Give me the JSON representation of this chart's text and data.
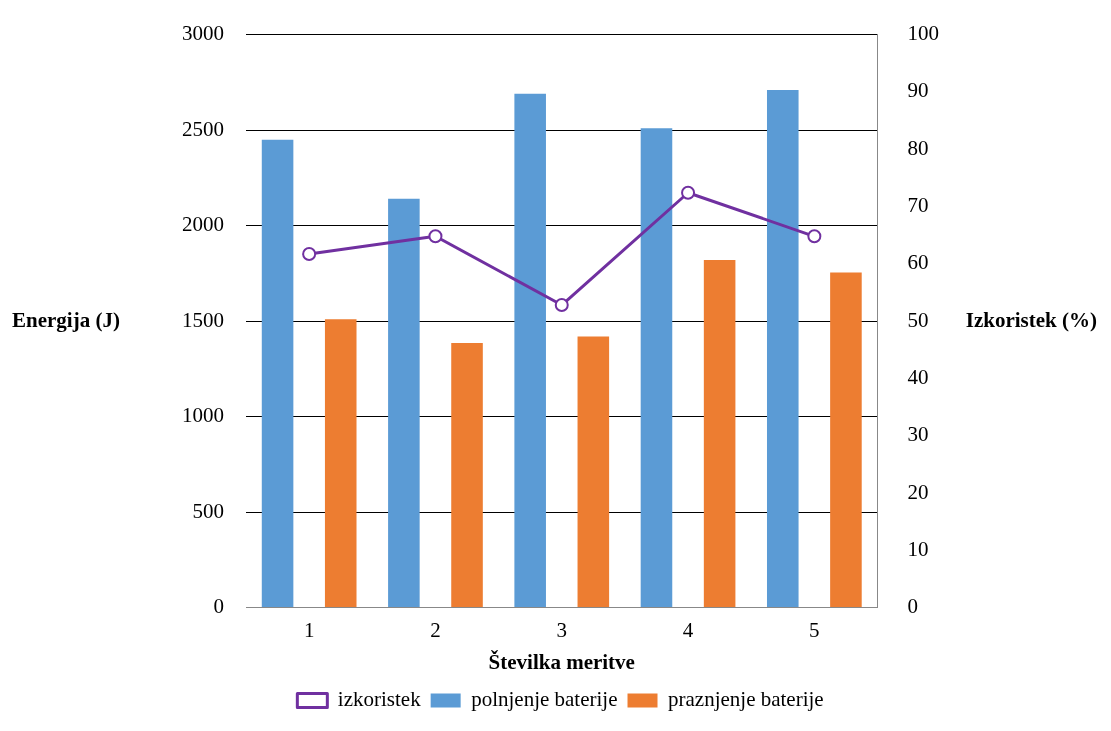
{
  "chart_data": {
    "type": "bar",
    "xlabel": "Številka meritve",
    "ylabel": "Energija (J)",
    "y2label": "Izkoristek (%)",
    "categories": [
      "1",
      "2",
      "3",
      "4",
      "5"
    ],
    "series": [
      {
        "name": "polnjenje baterije",
        "color": "#5b9bd5",
        "values": [
          2450,
          2140,
          2690,
          2510,
          2710
        ]
      },
      {
        "name": "praznjenje baterije",
        "color": "#ed7d31",
        "values": [
          1510,
          1385,
          1420,
          1820,
          1755
        ]
      },
      {
        "name": "izkoristek",
        "color": "#7030a0",
        "type": "line",
        "axis": "y2",
        "values": [
          61.7,
          64.8,
          52.8,
          72.4,
          64.8
        ]
      }
    ],
    "ylim": [
      0,
      3000
    ],
    "yticks": [
      0,
      500,
      1000,
      1500,
      2000,
      2500,
      3000
    ],
    "y2lim": [
      0,
      100
    ],
    "y2ticks": [
      0,
      10,
      20,
      30,
      40,
      50,
      60,
      70,
      80,
      90,
      100
    ],
    "grid": "y",
    "legend": "bottom",
    "marker": "circle",
    "line_style": "solid"
  }
}
